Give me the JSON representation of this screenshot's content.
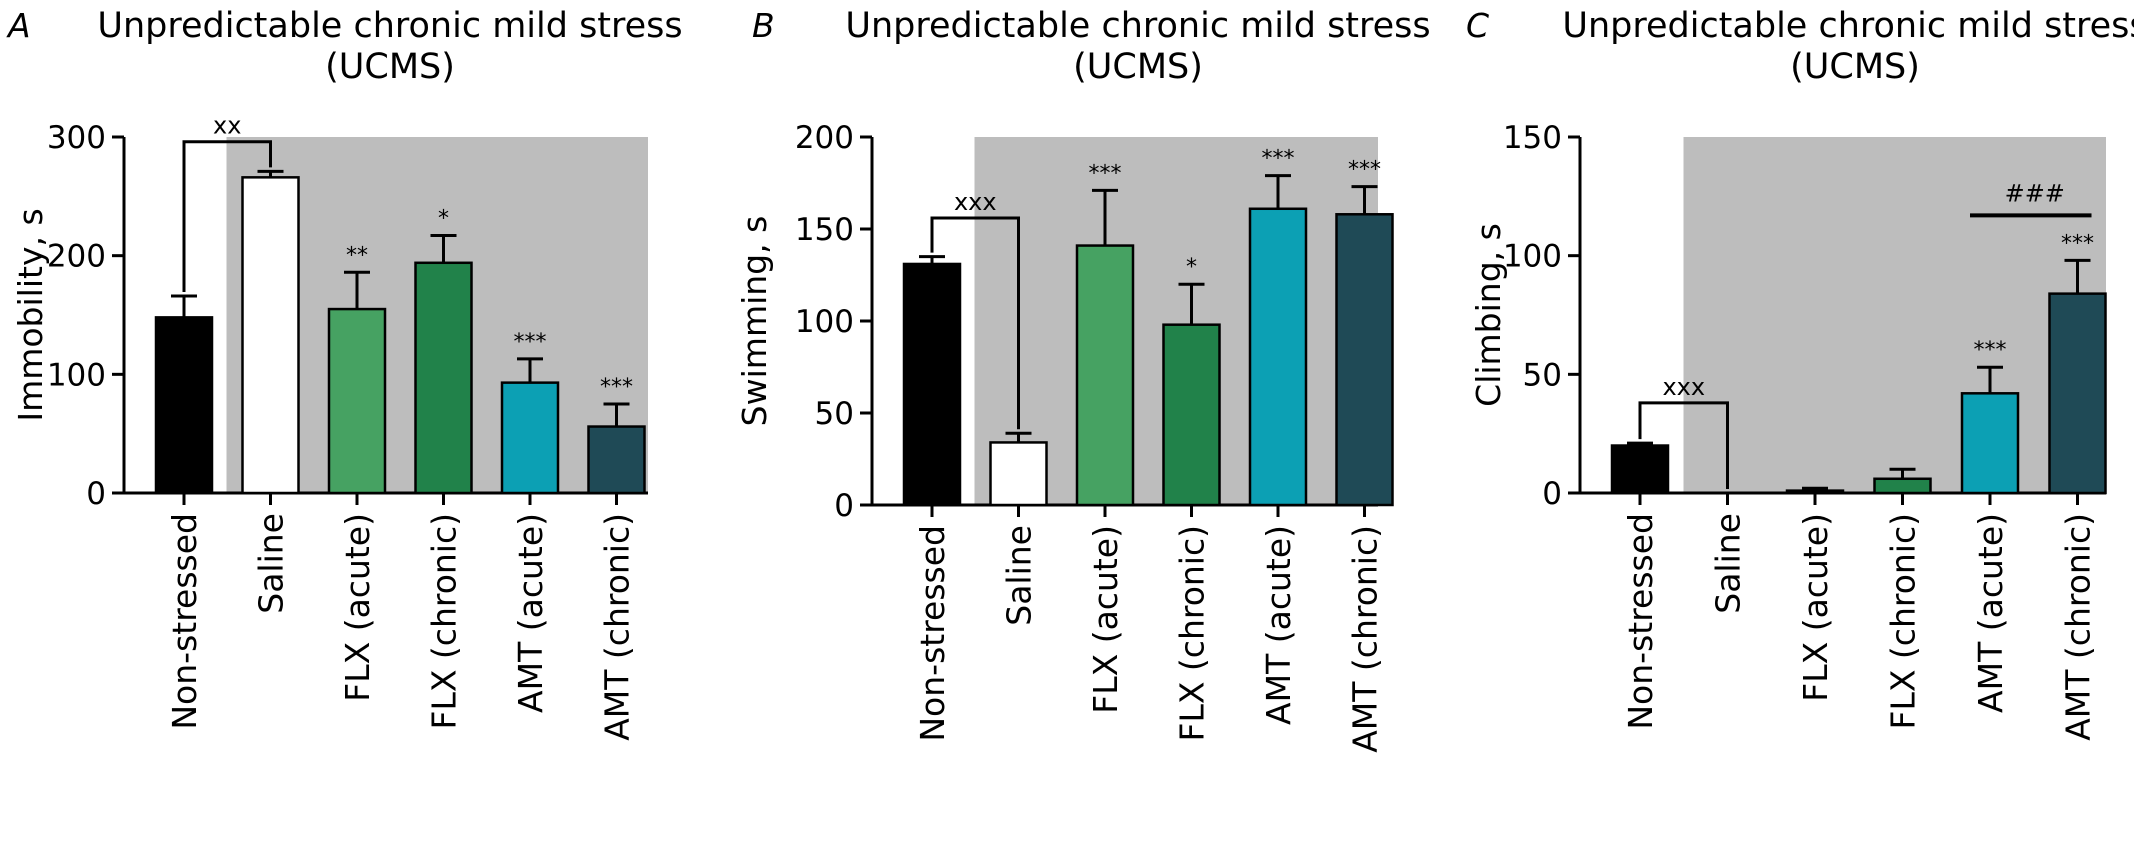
{
  "chart_data": [
    {
      "type": "bar",
      "panel_letter": "A",
      "title": "Unpredictable chronic mild stress (UCMS)",
      "title_lines": [
        "Unpredictable chronic mild stress",
        "(UCMS)"
      ],
      "xlabel": "",
      "ylabel": "Immobility, s",
      "ylim": [
        0,
        300
      ],
      "yticks": [
        0,
        100,
        200,
        300
      ],
      "categories": [
        "Non-stressed",
        "Saline",
        "FLX (acute)",
        "FLX (chronic)",
        "AMT (acute)",
        "AMT (chronic)"
      ],
      "values": [
        148,
        266,
        155,
        194,
        93,
        56
      ],
      "errors": [
        18,
        5,
        31,
        23,
        20,
        19
      ],
      "significance": [
        "",
        "",
        "**",
        "*",
        "***",
        "***"
      ],
      "comparison": {
        "label": "xx",
        "from": 0,
        "to": 1
      },
      "shaded_region": "Saline to AMT (chronic)",
      "grid": false
    },
    {
      "type": "bar",
      "panel_letter": "B",
      "title": "Unpredictable chronic mild stress (UCMS)",
      "title_lines": [
        "Unpredictable chronic mild stress",
        "(UCMS)"
      ],
      "xlabel": "",
      "ylabel": "Swimming, s",
      "ylim": [
        0,
        200
      ],
      "yticks": [
        0,
        50,
        100,
        150,
        200
      ],
      "categories": [
        "Non-stressed",
        "Saline",
        "FLX (acute)",
        "FLX (chronic)",
        "AMT (acute)",
        "AMT (chronic)"
      ],
      "values": [
        131,
        34,
        141,
        98,
        161,
        158
      ],
      "errors": [
        4,
        5,
        30,
        22,
        18,
        15
      ],
      "significance": [
        "",
        "",
        "***",
        "*",
        "***",
        "***"
      ],
      "comparison": {
        "label": "xxx",
        "from": 0,
        "to": 1
      },
      "shaded_region": "Saline to AMT (chronic)",
      "grid": false
    },
    {
      "type": "bar",
      "panel_letter": "C",
      "title": "Unpredictable chronic mild stress (UCMS)",
      "title_lines": [
        "Unpredictable chronic mild stress",
        "(UCMS)"
      ],
      "xlabel": "",
      "ylabel": "Climbing, s",
      "ylim": [
        0,
        150
      ],
      "yticks": [
        0,
        50,
        100,
        150
      ],
      "categories": [
        "Non-stressed",
        "Saline",
        "FLX (acute)",
        "FLX (chronic)",
        "AMT (acute)",
        "AMT (chronic)"
      ],
      "values": [
        20,
        0,
        1,
        6,
        42,
        84
      ],
      "errors": [
        1,
        0,
        1,
        4,
        11,
        14
      ],
      "significance": [
        "",
        "",
        "",
        "",
        "***",
        "***"
      ],
      "comparison": {
        "label": "xxx",
        "from": 0,
        "to": 1
      },
      "bracket": {
        "label": "###",
        "from": 4,
        "to": 5
      },
      "shaded_region": "Saline to AMT (chronic)",
      "grid": false
    }
  ],
  "colors": {
    "shade": "#bdbdbd",
    "bars": [
      "#000000",
      "#ffffff",
      "#46a262",
      "#21824a",
      "#0ca0b4",
      "#1f4a56"
    ],
    "outline": "#000000"
  }
}
